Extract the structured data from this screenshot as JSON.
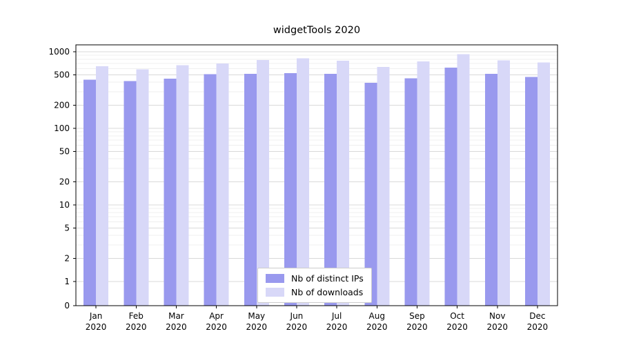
{
  "title": "widgetTools 2020",
  "legend": {
    "items": [
      {
        "label": "Nb of distinct IPs",
        "color": "#9999ee"
      },
      {
        "label": "Nb of downloads",
        "color": "#d8d8f8"
      }
    ]
  },
  "chart_data": {
    "type": "bar",
    "title": "widgetTools 2020",
    "categories": [
      "Jan",
      "Feb",
      "Mar",
      "Apr",
      "May",
      "Jun",
      "Jul",
      "Aug",
      "Sep",
      "Oct",
      "Nov",
      "Dec"
    ],
    "year": "2020",
    "series": [
      {
        "name": "Nb of distinct IPs",
        "color": "#9999ee",
        "values": [
          430,
          415,
          445,
          510,
          515,
          525,
          515,
          395,
          450,
          620,
          515,
          470
        ]
      },
      {
        "name": "Nb of downloads",
        "color": "#d8d8f8",
        "values": [
          650,
          590,
          665,
          705,
          780,
          825,
          765,
          635,
          745,
          930,
          775,
          725
        ]
      }
    ],
    "xlabel": "",
    "ylabel": "",
    "yscale": "symlog",
    "yticks": [
      0,
      1,
      2,
      5,
      10,
      20,
      50,
      100,
      200,
      500,
      1000
    ],
    "minor_gridlines": [
      3,
      4,
      6,
      7,
      8,
      9,
      30,
      40,
      60,
      70,
      80,
      90,
      300,
      400,
      600,
      700,
      800,
      900
    ],
    "ylim": [
      0,
      1200
    ],
    "grid": true,
    "legend_position": "lower center",
    "colors": {
      "major_grid": "#d9d9d9",
      "minor_grid": "#efefef",
      "axis": "#000000",
      "text": "#000000"
    }
  }
}
